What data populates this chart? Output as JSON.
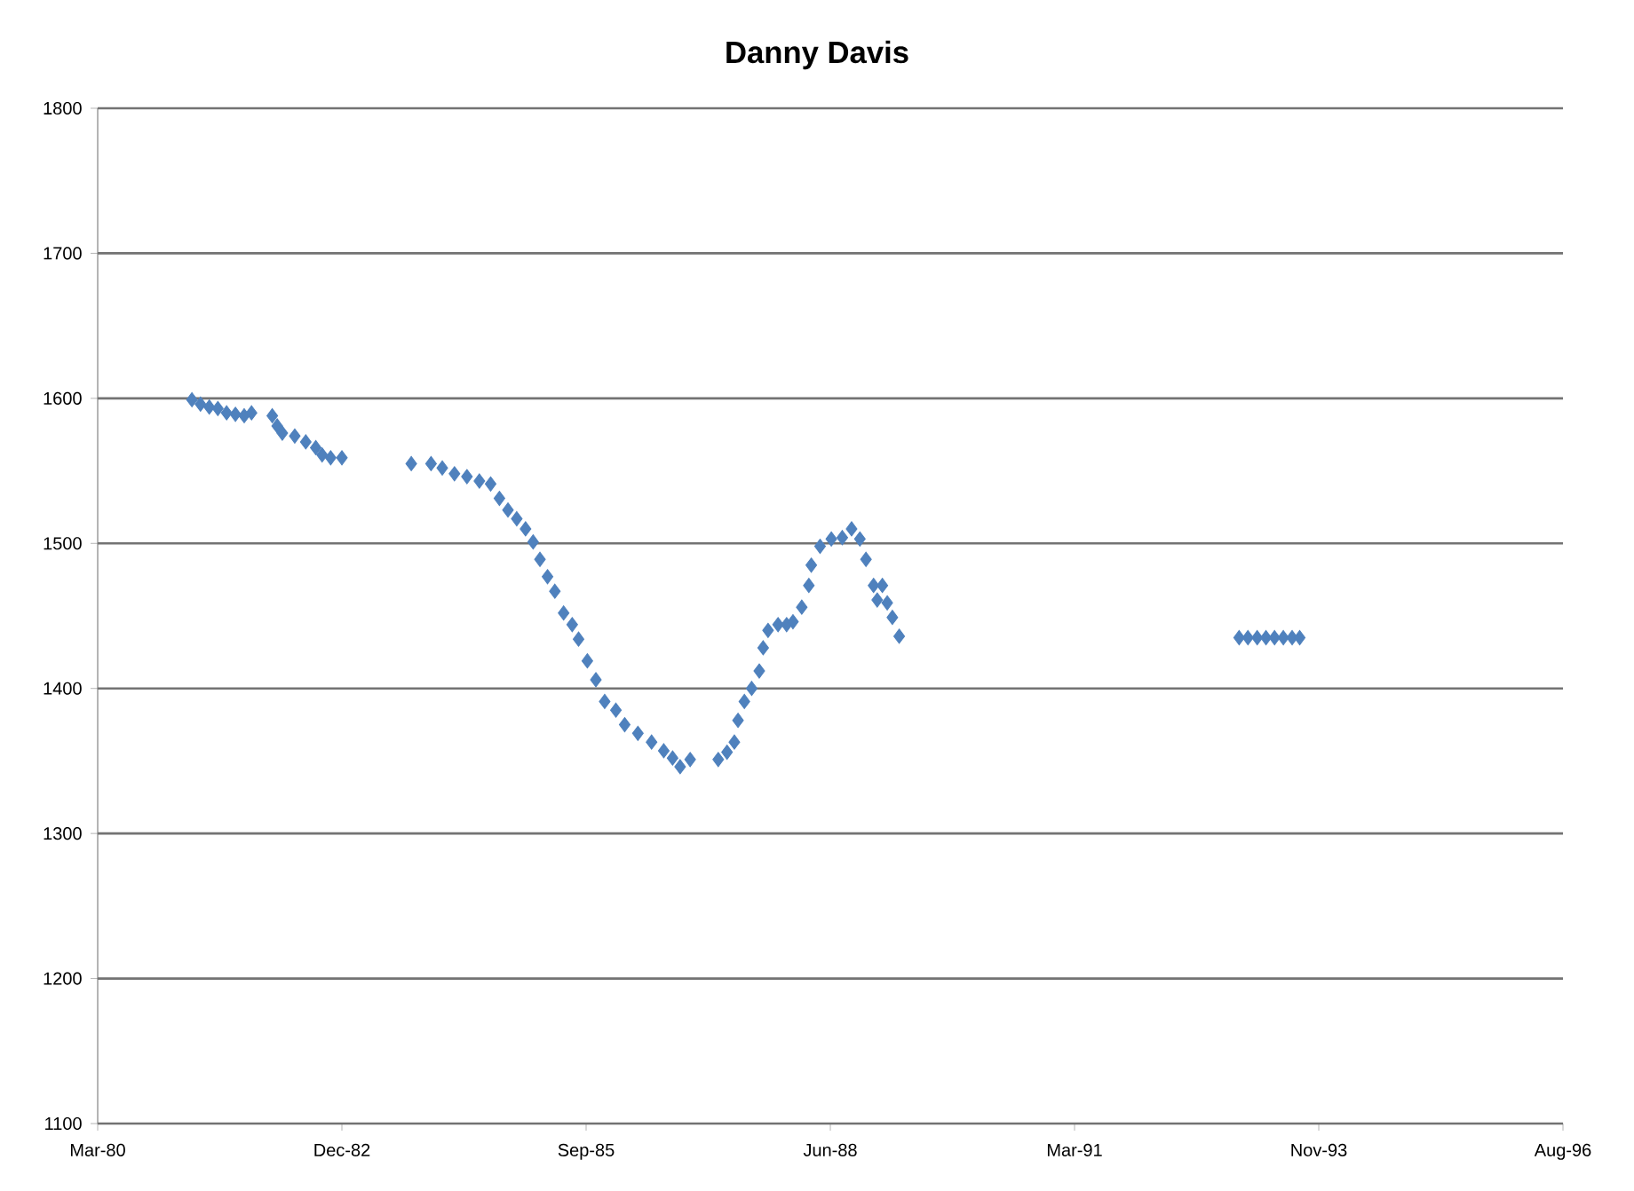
{
  "chart_data": {
    "type": "scatter",
    "title": "Danny Davis",
    "marker": "diamond",
    "grid": "y",
    "color": "#4f81bd",
    "x": [
      "1981-04-10",
      "1981-05-15",
      "1981-06-20",
      "1981-07-25",
      "1981-08-30",
      "1981-10-05",
      "1981-11-10",
      "1981-12-10",
      "1982-03-05",
      "1982-03-25",
      "1982-04-15",
      "1982-06-05",
      "1982-07-20",
      "1982-08-30",
      "1982-09-25",
      "1982-10-30",
      "1982-12-15",
      "1983-09-25",
      "1983-12-15",
      "1984-01-30",
      "1984-03-20",
      "1984-05-10",
      "1984-06-30",
      "1984-08-15",
      "1984-09-20",
      "1984-10-25",
      "1984-11-30",
      "1985-01-05",
      "1985-02-05",
      "1985-03-05",
      "1985-04-05",
      "1985-05-05",
      "1985-06-10",
      "1985-07-15",
      "1985-08-10",
      "1985-09-15",
      "1985-10-20",
      "1985-11-25",
      "1986-01-10",
      "1986-02-15",
      "1986-04-10",
      "1986-06-05",
      "1986-07-25",
      "1986-08-30",
      "1986-09-30",
      "1986-11-10",
      "1987-03-05",
      "1987-04-10",
      "1987-05-10",
      "1987-05-25",
      "1987-06-20",
      "1987-07-20",
      "1987-08-20",
      "1987-09-05",
      "1987-09-25",
      "1987-11-05",
      "1987-12-10",
      "1988-01-05",
      "1988-02-10",
      "1988-03-10",
      "1988-03-20",
      "1988-04-25",
      "1988-06-10",
      "1988-07-25",
      "1988-09-01",
      "1988-10-05",
      "1988-10-30",
      "1988-11-30",
      "1988-12-15",
      "1989-01-05",
      "1989-01-25",
      "1989-02-15",
      "1989-03-15",
      "1993-01-05",
      "1993-02-10",
      "1993-03-20",
      "1993-04-25",
      "1993-05-30",
      "1993-07-05",
      "1993-08-10",
      "1993-09-10"
    ],
    "values": [
      1599,
      1596,
      1594,
      1593,
      1590,
      1589,
      1588,
      1590,
      1588,
      1581,
      1576,
      1574,
      1570,
      1566,
      1561,
      1559,
      1559,
      1555,
      1555,
      1552,
      1548,
      1546,
      1543,
      1541,
      1531,
      1523,
      1517,
      1510,
      1501,
      1489,
      1477,
      1467,
      1452,
      1444,
      1434,
      1419,
      1406,
      1391,
      1385,
      1375,
      1369,
      1363,
      1357,
      1352,
      1346,
      1351,
      1351,
      1356,
      1363,
      1378,
      1391,
      1400,
      1412,
      1428,
      1440,
      1444,
      1444,
      1446,
      1456,
      1471,
      1485,
      1498,
      1503,
      1504,
      1510,
      1503,
      1489,
      1471,
      1461,
      1471,
      1459,
      1449,
      1436,
      1435,
      1435,
      1435,
      1435,
      1435,
      1435,
      1435,
      1435
    ],
    "xlim": [
      "1980-03-20",
      "1996-08-23"
    ],
    "xticks": [
      {
        "value": "1980-03-20",
        "label": "Mar-80"
      },
      {
        "value": "1982-12-15",
        "label": "Dec-82"
      },
      {
        "value": "1985-09-10",
        "label": "Sep-85"
      },
      {
        "value": "1988-06-06",
        "label": "Jun-88"
      },
      {
        "value": "1991-03-03",
        "label": "Mar-91"
      },
      {
        "value": "1993-11-27",
        "label": "Nov-93"
      },
      {
        "value": "1996-08-23",
        "label": "Aug-96"
      }
    ],
    "ylim": [
      1100,
      1800
    ],
    "yticks": [
      1100,
      1200,
      1300,
      1400,
      1500,
      1600,
      1700,
      1800
    ]
  }
}
